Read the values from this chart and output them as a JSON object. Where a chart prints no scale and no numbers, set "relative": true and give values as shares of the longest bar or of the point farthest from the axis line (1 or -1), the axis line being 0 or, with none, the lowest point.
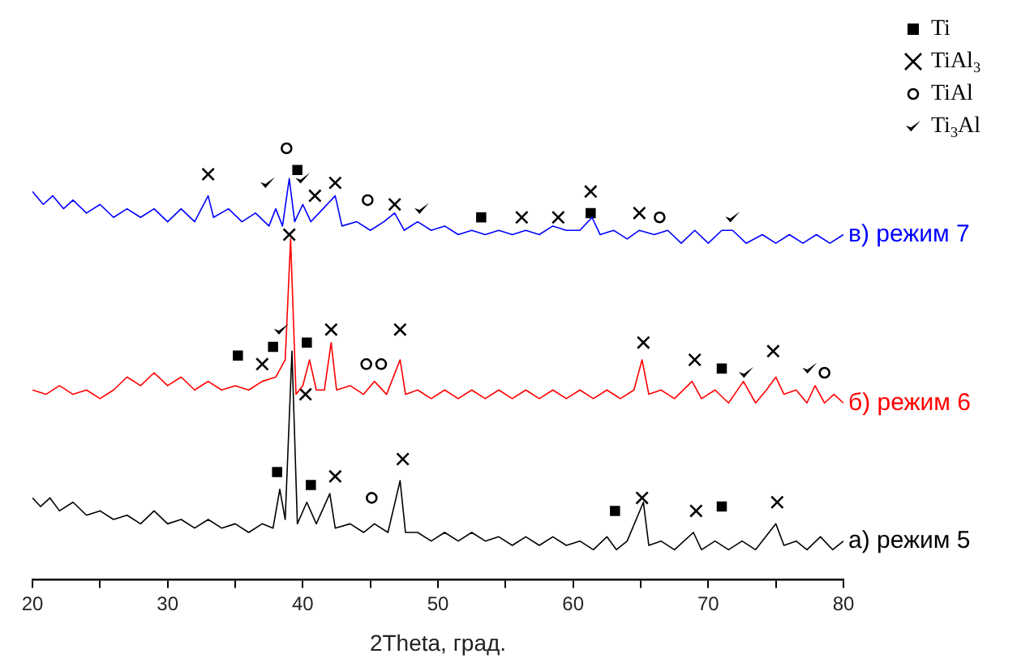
{
  "chart_data": {
    "type": "line",
    "relative": true,
    "xlabel": "2Theta, град.",
    "xlim": [
      20,
      80
    ],
    "xticks": [
      20,
      {
        "value": 25,
        "label": null
      },
      30,
      {
        "value": 35,
        "label": null
      },
      40,
      {
        "value": 45,
        "label": null
      },
      50,
      {
        "value": 55,
        "label": null
      },
      60,
      {
        "value": 65,
        "label": null
      },
      70,
      {
        "value": 75,
        "label": null
      },
      80
    ],
    "grid": false,
    "legend": "top right",
    "line_style": "solid",
    "series": [
      {
        "name": "в) режим 7",
        "color": "#0000ff",
        "marker": "none",
        "x": [
          20,
          20.8,
          21.5,
          22.3,
          23,
          24,
          25,
          26,
          27,
          28,
          29,
          30,
          31,
          32,
          33,
          33.4,
          34.5,
          35.5,
          36.5,
          37.5,
          38,
          38.5,
          39,
          39.4,
          40,
          40.6,
          41.5,
          42.4,
          42.9,
          44,
          45,
          46,
          46.8,
          47.5,
          48.5,
          49.5,
          50.5,
          51.5,
          52.5,
          53.5,
          54.5,
          55.5,
          56.5,
          57.5,
          58.5,
          59.5,
          60.5,
          61.4,
          62,
          63,
          64,
          64.9,
          66,
          67,
          68,
          69,
          70,
          71,
          71.8,
          72.8,
          74,
          75,
          76,
          77,
          78,
          79,
          80
        ],
        "values": [
          0.9,
          0.87,
          0.89,
          0.86,
          0.88,
          0.85,
          0.87,
          0.84,
          0.86,
          0.84,
          0.86,
          0.83,
          0.86,
          0.83,
          0.89,
          0.84,
          0.86,
          0.83,
          0.85,
          0.82,
          0.86,
          0.82,
          0.93,
          0.83,
          0.87,
          0.83,
          0.86,
          0.89,
          0.82,
          0.83,
          0.81,
          0.83,
          0.85,
          0.81,
          0.83,
          0.81,
          0.82,
          0.8,
          0.81,
          0.8,
          0.81,
          0.8,
          0.81,
          0.8,
          0.82,
          0.81,
          0.81,
          0.84,
          0.8,
          0.81,
          0.79,
          0.81,
          0.8,
          0.81,
          0.78,
          0.81,
          0.78,
          0.81,
          0.81,
          0.78,
          0.8,
          0.78,
          0.8,
          0.78,
          0.8,
          0.78,
          0.8
        ]
      },
      {
        "name": "б) режим 6",
        "color": "#ff0000",
        "marker": "none",
        "x": [
          20,
          21,
          22,
          23,
          24,
          25,
          26,
          27,
          28,
          29,
          30,
          31,
          32,
          33,
          34,
          35,
          36,
          37,
          38,
          38.7,
          39.1,
          39.5,
          40,
          40.5,
          41,
          41.6,
          42.1,
          42.5,
          43.5,
          44.5,
          45.3,
          46.2,
          47.2,
          47.6,
          48.5,
          49.5,
          50.5,
          51.5,
          52.5,
          53.5,
          54.5,
          55.5,
          56.5,
          57.5,
          58.5,
          59.5,
          60.5,
          61.5,
          62.5,
          63.5,
          64.5,
          65.1,
          65.6,
          66.5,
          67.5,
          68.8,
          69.5,
          70.5,
          71.5,
          72.6,
          73.5,
          74.3,
          75,
          75.6,
          76.5,
          77.3,
          77.9,
          78.6,
          79.3,
          80
        ],
        "values": [
          0.44,
          0.43,
          0.45,
          0.43,
          0.44,
          0.42,
          0.44,
          0.47,
          0.45,
          0.48,
          0.45,
          0.47,
          0.44,
          0.46,
          0.44,
          0.45,
          0.44,
          0.46,
          0.47,
          0.51,
          0.79,
          0.43,
          0.45,
          0.51,
          0.44,
          0.44,
          0.55,
          0.44,
          0.45,
          0.43,
          0.46,
          0.43,
          0.51,
          0.43,
          0.44,
          0.42,
          0.44,
          0.42,
          0.44,
          0.42,
          0.44,
          0.42,
          0.44,
          0.42,
          0.44,
          0.42,
          0.44,
          0.42,
          0.44,
          0.42,
          0.44,
          0.51,
          0.43,
          0.44,
          0.42,
          0.46,
          0.42,
          0.44,
          0.41,
          0.46,
          0.41,
          0.44,
          0.47,
          0.43,
          0.44,
          0.41,
          0.45,
          0.41,
          0.43,
          0.41
        ]
      },
      {
        "name": "а) режим 5",
        "color": "#000000",
        "marker": "none",
        "x": [
          20,
          20.6,
          21.3,
          22,
          23,
          24,
          25,
          26,
          27,
          28,
          29,
          30,
          31,
          32,
          33,
          34,
          35,
          36,
          37,
          37.8,
          38.3,
          38.7,
          39.2,
          39.6,
          40.3,
          41,
          42,
          42.4,
          43.5,
          44.5,
          45.3,
          46.3,
          47.2,
          47.6,
          48.5,
          49.5,
          50.5,
          51.5,
          52.5,
          53.5,
          54.5,
          55.5,
          56.5,
          57.5,
          58.5,
          59.5,
          60.5,
          61.5,
          62.5,
          63.2,
          64,
          65.2,
          65.6,
          66.5,
          67.5,
          68.9,
          69.5,
          70.5,
          71.5,
          72.5,
          73.5,
          75,
          75.6,
          76.5,
          77.3,
          78.3,
          79.2,
          80
        ],
        "values": [
          0.19,
          0.17,
          0.19,
          0.16,
          0.18,
          0.15,
          0.16,
          0.14,
          0.15,
          0.13,
          0.16,
          0.13,
          0.14,
          0.12,
          0.14,
          0.12,
          0.13,
          0.11,
          0.13,
          0.12,
          0.21,
          0.14,
          0.53,
          0.13,
          0.18,
          0.13,
          0.2,
          0.12,
          0.13,
          0.11,
          0.13,
          0.11,
          0.23,
          0.11,
          0.11,
          0.09,
          0.11,
          0.09,
          0.11,
          0.09,
          0.1,
          0.08,
          0.1,
          0.08,
          0.1,
          0.08,
          0.09,
          0.07,
          0.1,
          0.07,
          0.09,
          0.18,
          0.08,
          0.09,
          0.07,
          0.11,
          0.07,
          0.09,
          0.07,
          0.09,
          0.07,
          0.13,
          0.08,
          0.09,
          0.07,
          0.1,
          0.07,
          0.09
        ]
      },
      {
        "name": "Ti",
        "type": "scatter",
        "marker": "square",
        "color": "#000000",
        "x": [
          39.6,
          53.2,
          61.3,
          35.2,
          37.8,
          40.3,
          71.0,
          38.1,
          40.6,
          63.1,
          71.0
        ],
        "values": [
          0.95,
          0.84,
          0.85,
          0.52,
          0.54,
          0.55,
          0.49,
          0.25,
          0.22,
          0.16,
          0.17
        ]
      },
      {
        "name": "TiAl$_{3}$",
        "type": "scatter",
        "marker": "cross",
        "color": "#000000",
        "x": [
          33.0,
          40.9,
          42.4,
          46.8,
          56.2,
          58.9,
          61.3,
          64.9,
          37.0,
          39.0,
          40.2,
          42.1,
          47.2,
          65.2,
          69.0,
          74.8,
          42.4,
          47.4,
          65.1,
          69.1,
          75.1
        ],
        "values": [
          0.94,
          0.89,
          0.92,
          0.87,
          0.84,
          0.84,
          0.9,
          0.85,
          0.5,
          0.8,
          0.43,
          0.58,
          0.58,
          0.55,
          0.51,
          0.53,
          0.24,
          0.28,
          0.19,
          0.16,
          0.18
        ]
      },
      {
        "name": "TiAl",
        "type": "scatter",
        "marker": "circle",
        "color": "#000000",
        "x": [
          38.8,
          44.8,
          66.4,
          44.7,
          45.8,
          78.6,
          45.1
        ],
        "values": [
          1,
          0.88,
          0.84,
          0.5,
          0.5,
          0.48,
          0.19
        ]
      },
      {
        "name": "Ti$_{3}$Al",
        "type": "scatter",
        "color": "#000000",
        "x": [
          37.4,
          40.0,
          48.8,
          71.8,
          38.4,
          72.8,
          77.5
        ],
        "values": [
          0.92,
          0.93,
          0.86,
          0.84,
          0.58,
          0.48,
          0.49
        ]
      }
    ]
  }
}
